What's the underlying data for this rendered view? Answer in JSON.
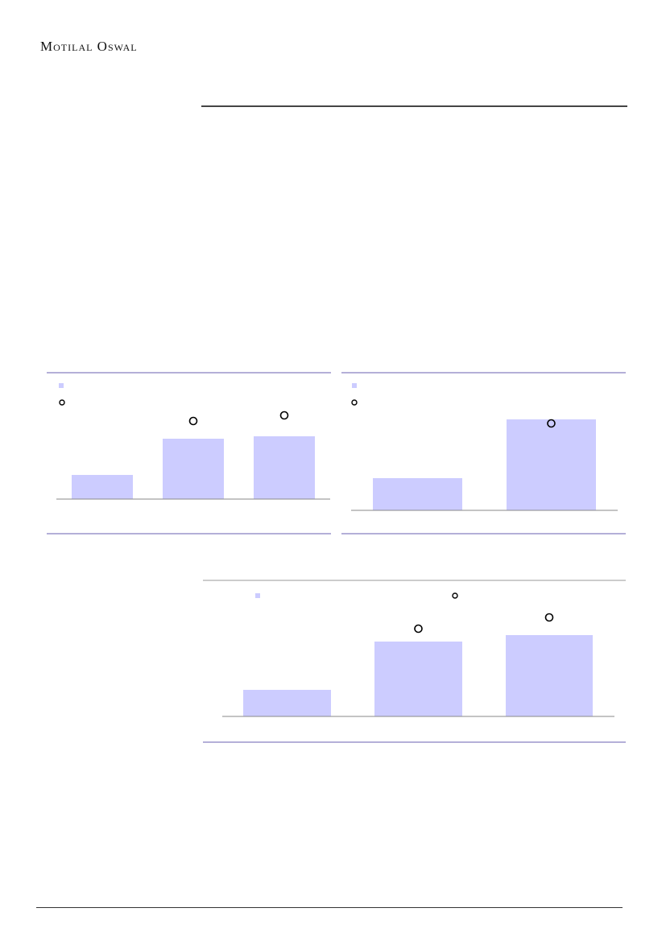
{
  "header": {
    "logo_text": "Motilal Oswal"
  },
  "colors": {
    "bar": "#ccccff",
    "marker": "#000000",
    "panel_rule": "#6a5fb0",
    "axis": "#888888"
  },
  "chart_data": [
    {
      "type": "bar",
      "bars": [
        30,
        75,
        78
      ],
      "markers": [
        null,
        97,
        104
      ],
      "legend": [
        "bar-series",
        "marker-series"
      ],
      "grid": false
    },
    {
      "type": "bar",
      "bars": [
        40,
        113
      ],
      "markers": [
        null,
        108
      ],
      "legend": [
        "bar-series",
        "marker-series"
      ],
      "grid": false
    },
    {
      "type": "bar",
      "bars": [
        33,
        93,
        101
      ],
      "markers": [
        null,
        109,
        123
      ],
      "legend": [
        "bar-series",
        "marker-series"
      ],
      "grid": false
    }
  ]
}
